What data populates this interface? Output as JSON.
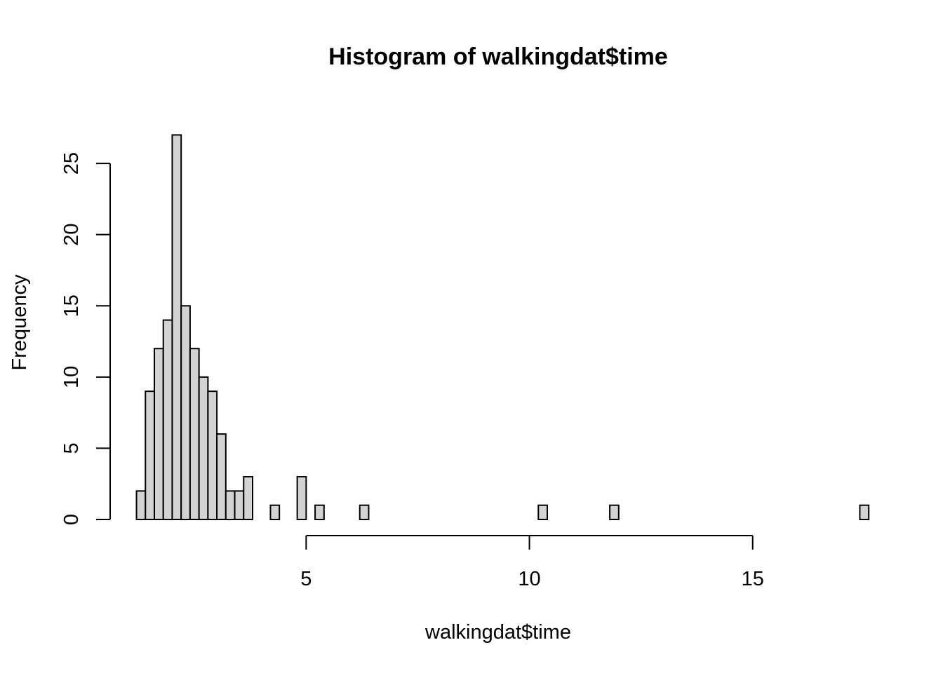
{
  "chart_data": {
    "type": "bar",
    "title": "Histogram of walkingdat$time",
    "xlabel": "walkingdat$time",
    "ylabel": "Frequency",
    "bin_width": 0.2,
    "bins": [
      {
        "start": 1.2,
        "end": 1.4,
        "count": 2
      },
      {
        "start": 1.4,
        "end": 1.6,
        "count": 9
      },
      {
        "start": 1.6,
        "end": 1.8,
        "count": 12
      },
      {
        "start": 1.8,
        "end": 2.0,
        "count": 14
      },
      {
        "start": 2.0,
        "end": 2.2,
        "count": 27
      },
      {
        "start": 2.2,
        "end": 2.4,
        "count": 15
      },
      {
        "start": 2.4,
        "end": 2.6,
        "count": 12
      },
      {
        "start": 2.6,
        "end": 2.8,
        "count": 10
      },
      {
        "start": 2.8,
        "end": 3.0,
        "count": 9
      },
      {
        "start": 3.0,
        "end": 3.2,
        "count": 6
      },
      {
        "start": 3.2,
        "end": 3.4,
        "count": 2
      },
      {
        "start": 3.4,
        "end": 3.6,
        "count": 2
      },
      {
        "start": 3.6,
        "end": 3.8,
        "count": 3
      },
      {
        "start": 4.2,
        "end": 4.4,
        "count": 1
      },
      {
        "start": 4.8,
        "end": 5.0,
        "count": 3
      },
      {
        "start": 5.2,
        "end": 5.4,
        "count": 1
      },
      {
        "start": 6.2,
        "end": 6.4,
        "count": 1
      },
      {
        "start": 10.2,
        "end": 10.4,
        "count": 1
      },
      {
        "start": 11.8,
        "end": 12.0,
        "count": 1
      },
      {
        "start": 17.4,
        "end": 17.6,
        "count": 1
      }
    ],
    "xlim": [
      0.5,
      18.1
    ],
    "ylim": [
      0,
      28.5
    ],
    "x_ticks": [
      5,
      10,
      15
    ],
    "y_ticks": [
      0,
      5,
      10,
      15,
      20,
      25
    ],
    "bar_color": "#d3d3d3",
    "grid": false
  }
}
